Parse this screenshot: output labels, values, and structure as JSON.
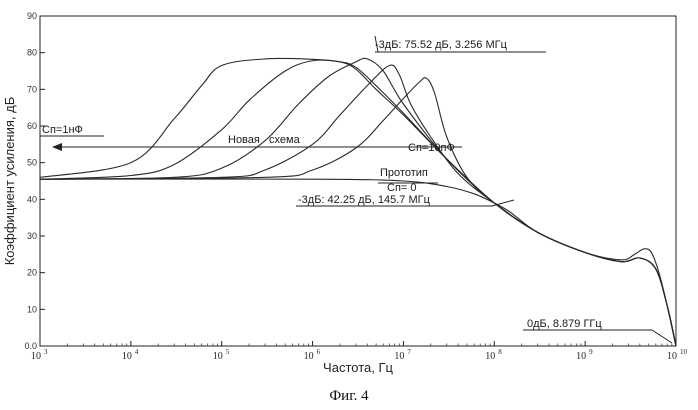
{
  "chart_data": {
    "type": "line",
    "xscale": "log",
    "xlim": [
      1000,
      10000000000
    ],
    "ylim": [
      0,
      90
    ],
    "xlabel": "Частота, Гц",
    "ylabel": "Коэффициент усиления, дБ",
    "yticks": [
      "0.0",
      "10",
      "20",
      "30",
      "40",
      "50",
      "60",
      "70",
      "80",
      "90"
    ],
    "xticks": [
      {
        "base": "10",
        "exp": "3"
      },
      {
        "base": "10",
        "exp": "4"
      },
      {
        "base": "10",
        "exp": "5"
      },
      {
        "base": "10",
        "exp": "6"
      },
      {
        "base": "10",
        "exp": "7"
      },
      {
        "base": "10",
        "exp": "8"
      },
      {
        "base": "10",
        "exp": "9"
      },
      {
        "base": "10",
        "exp": "10"
      }
    ],
    "series": [
      {
        "x": [
          1000,
          10000,
          30000,
          60000,
          100000,
          300000,
          1000000,
          2000000,
          3000000,
          5000000,
          10000000,
          30000000,
          100000000,
          300000000,
          1000000000,
          2500000000,
          4000000000,
          6000000000,
          8000000000,
          10000000000
        ],
        "y": [
          46,
          50,
          62,
          71,
          76.5,
          78.3,
          78.2,
          77.5,
          75.5,
          70,
          63,
          51,
          39,
          31,
          25.5,
          23,
          24,
          21,
          11,
          0
        ]
      },
      {
        "x": [
          1000,
          10000,
          30000,
          100000,
          200000,
          500000,
          1000000,
          2000000,
          3000000,
          5000000,
          10000000,
          30000000,
          100000000,
          300000000,
          1000000000,
          2500000000,
          4000000000,
          6000000000,
          8000000000,
          10000000000
        ],
        "y": [
          45.5,
          46.5,
          49.5,
          59,
          67,
          75,
          77.8,
          77.5,
          76,
          71,
          63.5,
          51,
          39,
          31,
          25.5,
          23,
          24,
          21,
          11,
          0
        ]
      },
      {
        "x": [
          1000,
          30000,
          100000,
          300000,
          700000,
          1500000,
          3000000,
          4000000,
          6000000,
          10000000,
          30000000,
          100000000,
          300000000,
          1000000000,
          2500000000,
          4000000000,
          6000000000,
          8000000000,
          10000000000
        ],
        "y": [
          45.5,
          46,
          48.5,
          56,
          66,
          73.5,
          77.5,
          78.3,
          75,
          66,
          51,
          39,
          31,
          25.5,
          23,
          24,
          21,
          11,
          0
        ]
      },
      {
        "x": [
          1000,
          100000,
          300000,
          1000000,
          2000000,
          4000000,
          7000000,
          9000000,
          12000000,
          20000000,
          40000000,
          100000000,
          300000000,
          1000000000,
          2500000000,
          4000000000,
          6000000000,
          8000000000,
          10000000000
        ],
        "y": [
          45.5,
          46,
          48,
          55,
          63,
          71,
          76.5,
          74,
          66,
          57,
          47,
          39,
          31,
          25.5,
          23,
          24,
          21,
          11,
          0
        ]
      },
      {
        "x": [
          1000,
          300000,
          1000000,
          3000000,
          6000000,
          10000000,
          15000000,
          18000000,
          22000000,
          30000000,
          50000000,
          100000000,
          300000000,
          1000000000,
          2500000000,
          4000000000,
          6000000000,
          8000000000,
          10000000000
        ],
        "y": [
          45.5,
          46,
          48,
          54,
          61.5,
          67.5,
          72,
          73,
          69,
          57,
          46,
          39,
          31,
          25.5,
          23,
          24,
          21,
          11,
          0
        ]
      },
      {
        "x": [
          1000,
          1000000,
          10000000,
          30000000,
          60000000,
          100000000,
          150000000,
          300000000,
          1000000000,
          2500000000,
          3500000000,
          4500000000,
          5500000000,
          7000000000,
          10000000000
        ],
        "y": [
          45.5,
          45.5,
          45,
          43.5,
          41.5,
          39,
          36.5,
          31,
          25.5,
          23.5,
          25,
          26.5,
          25,
          17,
          0
        ]
      }
    ],
    "annotations": {
      "peak_top": "-3дБ: 75.52 дБ, 3.256 МГц",
      "cn_left": "Cп=1нФ",
      "new_scheme": "Новая   схема",
      "cn_right": "Cп=10пФ",
      "prototype": "Прототип",
      "cn_zero": "Cп= 0",
      "bandwidth": "-3дБ: 42.25 дБ, 145.7 МГц",
      "zero_db": "0дБ, 8.879 ГГц"
    }
  },
  "caption": "Фиг. 4"
}
